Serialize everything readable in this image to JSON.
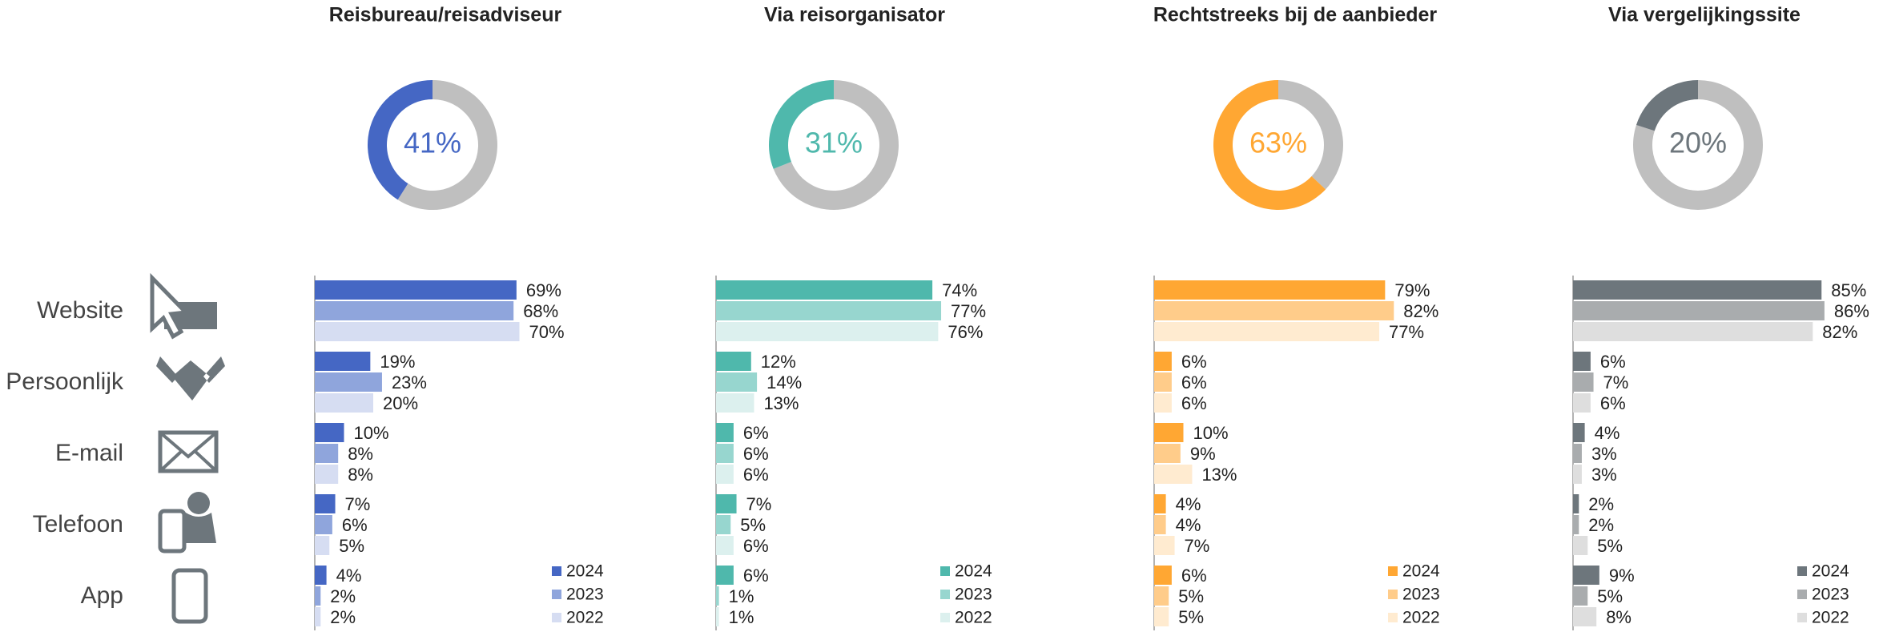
{
  "chart_data": [
    {
      "type": "bar",
      "title": "Reisbureau/reisadviseur",
      "donut": {
        "value": 41,
        "value_label": "41%",
        "color": "#4567c4",
        "rest_color": "#bfbfbf"
      },
      "categories": [
        "Website",
        "Persoonlijk",
        "E-mail",
        "Telefoon",
        "App"
      ],
      "series": [
        {
          "name": "2024",
          "color": "#4567c4",
          "values": [
            69,
            19,
            10,
            7,
            4
          ],
          "value_labels": [
            "69%",
            "19%",
            "10%",
            "7%",
            "4%"
          ]
        },
        {
          "name": "2023",
          "color": "#8fa5dc",
          "values": [
            68,
            23,
            8,
            6,
            2
          ],
          "value_labels": [
            "68%",
            "23%",
            "8%",
            "6%",
            "2%"
          ]
        },
        {
          "name": "2022",
          "color": "#d6ddf2",
          "values": [
            70,
            20,
            8,
            5,
            2
          ],
          "value_labels": [
            "70%",
            "20%",
            "8%",
            "5%",
            "2%"
          ]
        }
      ]
    },
    {
      "type": "bar",
      "title": "Via reisorganisator",
      "donut": {
        "value": 31,
        "value_label": "31%",
        "color": "#4fb8ac",
        "rest_color": "#bfbfbf"
      },
      "series": [
        {
          "name": "2024",
          "color": "#4fb8ac",
          "values": [
            74,
            12,
            6,
            7,
            6
          ],
          "value_labels": [
            "74%",
            "12%",
            "6%",
            "7%",
            "6%"
          ]
        },
        {
          "name": "2023",
          "color": "#97d6cf",
          "values": [
            77,
            14,
            6,
            5,
            1
          ],
          "value_labels": [
            "77%",
            "14%",
            "6%",
            "5%",
            "1%"
          ]
        },
        {
          "name": "2022",
          "color": "#dcf0ee",
          "values": [
            76,
            13,
            6,
            6,
            1
          ],
          "value_labels": [
            "76%",
            "13%",
            "6%",
            "6%",
            "1%"
          ]
        }
      ]
    },
    {
      "type": "bar",
      "title": "Rechtstreeks bij de aanbieder",
      "donut": {
        "value": 63,
        "value_label": "63%",
        "color": "#ffa733",
        "rest_color": "#bfbfbf"
      },
      "series": [
        {
          "name": "2024",
          "color": "#ffa733",
          "values": [
            79,
            6,
            10,
            4,
            6
          ],
          "value_labels": [
            "79%",
            "6%",
            "10%",
            "4%",
            "6%"
          ]
        },
        {
          "name": "2023",
          "color": "#ffcc8a",
          "values": [
            82,
            6,
            9,
            4,
            5
          ],
          "value_labels": [
            "82%",
            "6%",
            "9%",
            "4%",
            "5%"
          ]
        },
        {
          "name": "2022",
          "color": "#ffebd0",
          "values": [
            77,
            6,
            13,
            7,
            5
          ],
          "value_labels": [
            "77%",
            "6%",
            "13%",
            "7%",
            "5%"
          ]
        }
      ]
    },
    {
      "type": "bar",
      "title": "Via vergelijkingssite",
      "donut": {
        "value": 20,
        "value_label": "20%",
        "color": "#6d767c",
        "rest_color": "#bfbfbf"
      },
      "series": [
        {
          "name": "2024",
          "color": "#6d767c",
          "values": [
            85,
            6,
            4,
            2,
            9
          ],
          "value_labels": [
            "85%",
            "6%",
            "4%",
            "2%",
            "9%"
          ]
        },
        {
          "name": "2023",
          "color": "#a9acae",
          "values": [
            86,
            7,
            3,
            2,
            5
          ],
          "value_labels": [
            "86%",
            "7%",
            "3%",
            "2%",
            "5%"
          ]
        },
        {
          "name": "2022",
          "color": "#dedede",
          "values": [
            82,
            6,
            3,
            5,
            8
          ],
          "value_labels": [
            "82%",
            "6%",
            "3%",
            "5%",
            "8%"
          ]
        }
      ]
    }
  ]
}
